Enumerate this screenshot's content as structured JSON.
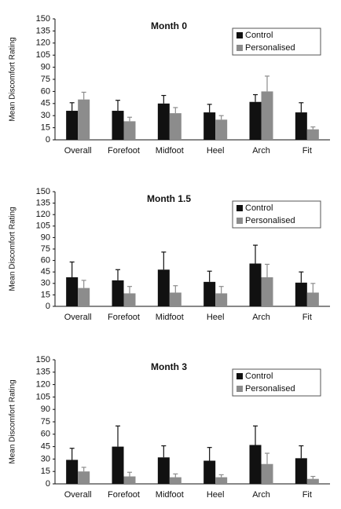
{
  "chart_data": [
    {
      "type": "bar",
      "title": "Month 0",
      "y_label": "Mean Discomfort Rating",
      "categories": [
        "Overall",
        "Forefoot",
        "Midfoot",
        "Heel",
        "Arch",
        "Fit"
      ],
      "series": [
        {
          "name": "Control",
          "color": "#111111",
          "values": [
            36,
            36,
            45,
            34,
            47,
            34
          ],
          "errors": [
            10,
            13,
            10,
            10,
            9,
            12
          ]
        },
        {
          "name": "Personalised",
          "color": "#8c8c8c",
          "values": [
            50,
            23,
            33,
            25,
            60,
            13
          ],
          "errors": [
            9,
            5,
            7,
            5,
            19,
            3
          ]
        }
      ],
      "ylim": [
        0,
        150
      ],
      "yticks": [
        0,
        15,
        30,
        45,
        60,
        75,
        90,
        105,
        120,
        135,
        150
      ],
      "legend": "upper right"
    },
    {
      "type": "bar",
      "title": "Month 1.5",
      "y_label": "Mean Discomfort Rating",
      "categories": [
        "Overall",
        "Forefoot",
        "Midfoot",
        "Heel",
        "Arch",
        "Fit"
      ],
      "series": [
        {
          "name": "Control",
          "color": "#111111",
          "values": [
            38,
            34,
            48,
            32,
            56,
            31
          ],
          "errors": [
            20,
            14,
            23,
            14,
            24,
            14
          ]
        },
        {
          "name": "Personalised",
          "color": "#8c8c8c",
          "values": [
            24,
            17,
            18,
            17,
            38,
            18
          ],
          "errors": [
            10,
            9,
            9,
            9,
            17,
            12
          ]
        }
      ],
      "ylim": [
        0,
        150
      ],
      "yticks": [
        0,
        15,
        30,
        45,
        60,
        75,
        90,
        105,
        120,
        135,
        150
      ],
      "legend": "upper right"
    },
    {
      "type": "bar",
      "title": "Month 3",
      "y_label": "Mean Discomfort Rating",
      "categories": [
        "Overall",
        "Forefoot",
        "Midfoot",
        "Heel",
        "Arch",
        "Fit"
      ],
      "series": [
        {
          "name": "Control",
          "color": "#111111",
          "values": [
            29,
            45,
            32,
            28,
            47,
            31
          ],
          "errors": [
            14,
            25,
            14,
            16,
            23,
            15
          ]
        },
        {
          "name": "Personalised",
          "color": "#8c8c8c",
          "values": [
            15,
            9,
            8,
            8,
            24,
            6
          ],
          "errors": [
            5,
            5,
            4,
            3,
            13,
            3
          ]
        }
      ],
      "ylim": [
        0,
        150
      ],
      "yticks": [
        0,
        15,
        30,
        45,
        60,
        75,
        90,
        105,
        120,
        135,
        150
      ],
      "legend": "upper right"
    }
  ]
}
